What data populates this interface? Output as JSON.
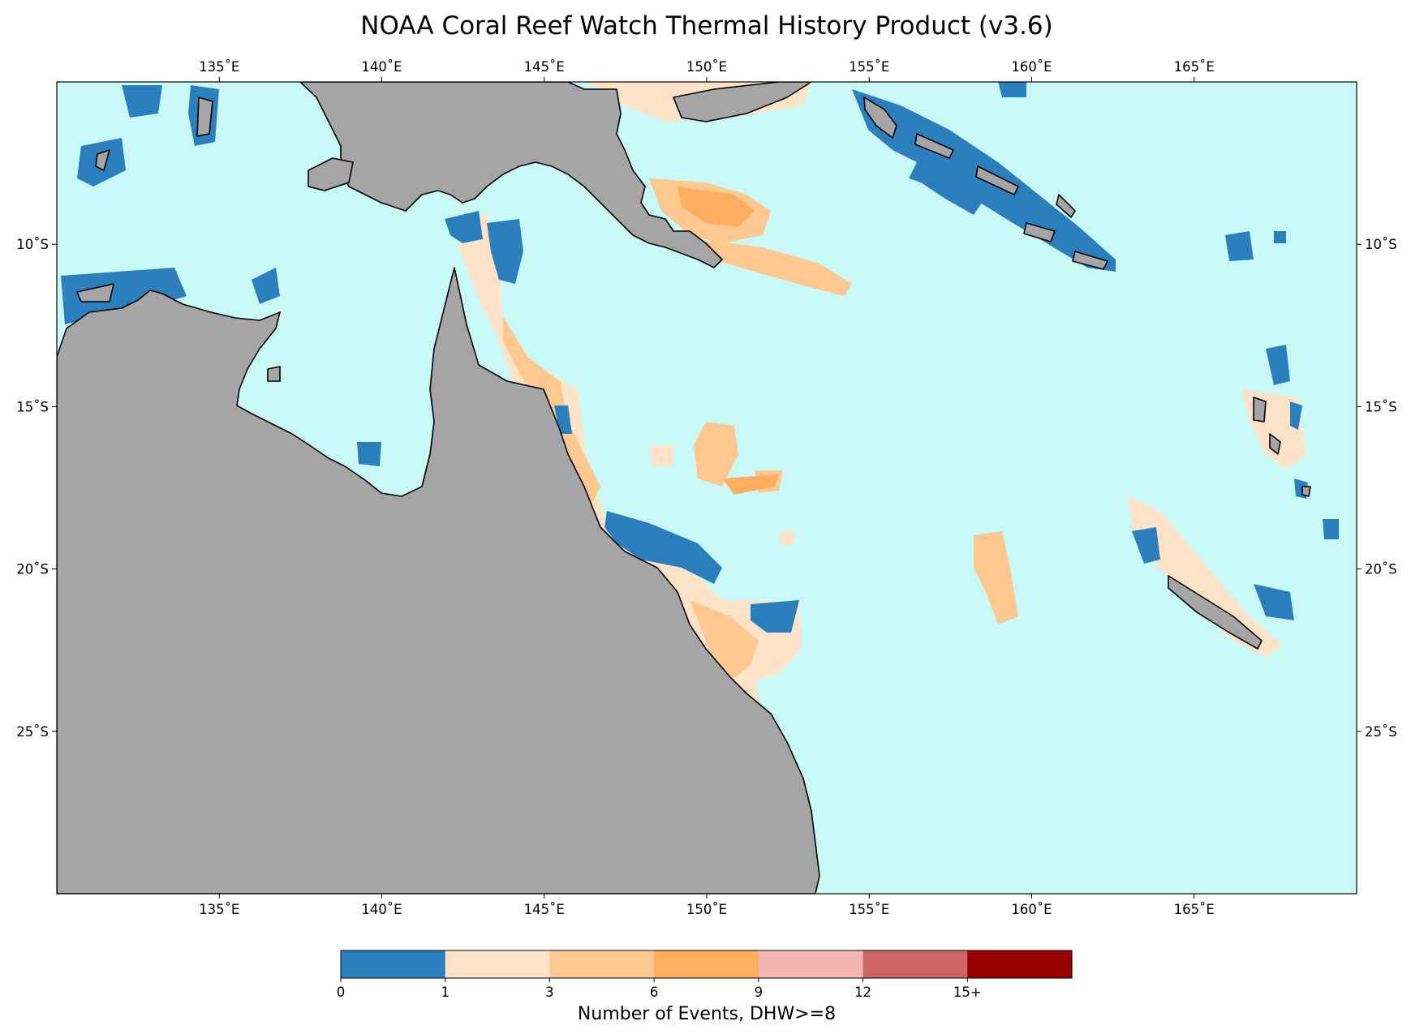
{
  "title": "NOAA Coral Reef Watch Thermal History Product (v3.6)",
  "colors": {
    "ocean": "#c8f9f7",
    "land": "#a5a5a5",
    "coast": "#000000"
  },
  "map": {
    "lon_range": [
      130,
      170
    ],
    "lat_range": [
      -30,
      -5
    ],
    "lon_ticks": [
      {
        "value": 135,
        "label": "135˚E"
      },
      {
        "value": 140,
        "label": "140˚E"
      },
      {
        "value": 145,
        "label": "145˚E"
      },
      {
        "value": 150,
        "label": "150˚E"
      },
      {
        "value": 155,
        "label": "155˚E"
      },
      {
        "value": 160,
        "label": "160˚E"
      },
      {
        "value": 165,
        "label": "165˚E"
      }
    ],
    "lat_ticks": [
      {
        "value": -10,
        "label": "10˚S"
      },
      {
        "value": -15,
        "label": "15˚S"
      },
      {
        "value": -20,
        "label": "20˚S"
      },
      {
        "value": -25,
        "label": "25˚S"
      }
    ]
  },
  "colorbar": {
    "label": "Number of Events, DHW>=8",
    "bins": [
      {
        "color": "#2a7fbc"
      },
      {
        "color": "#ffe3c8"
      },
      {
        "color": "#ffc891"
      },
      {
        "color": "#ffad5f"
      },
      {
        "color": "#f4b6b3"
      },
      {
        "color": "#cd6565"
      },
      {
        "color": "#980000"
      }
    ],
    "tick_labels": [
      "0",
      "1",
      "3",
      "6",
      "9",
      "12",
      "15+"
    ]
  }
}
